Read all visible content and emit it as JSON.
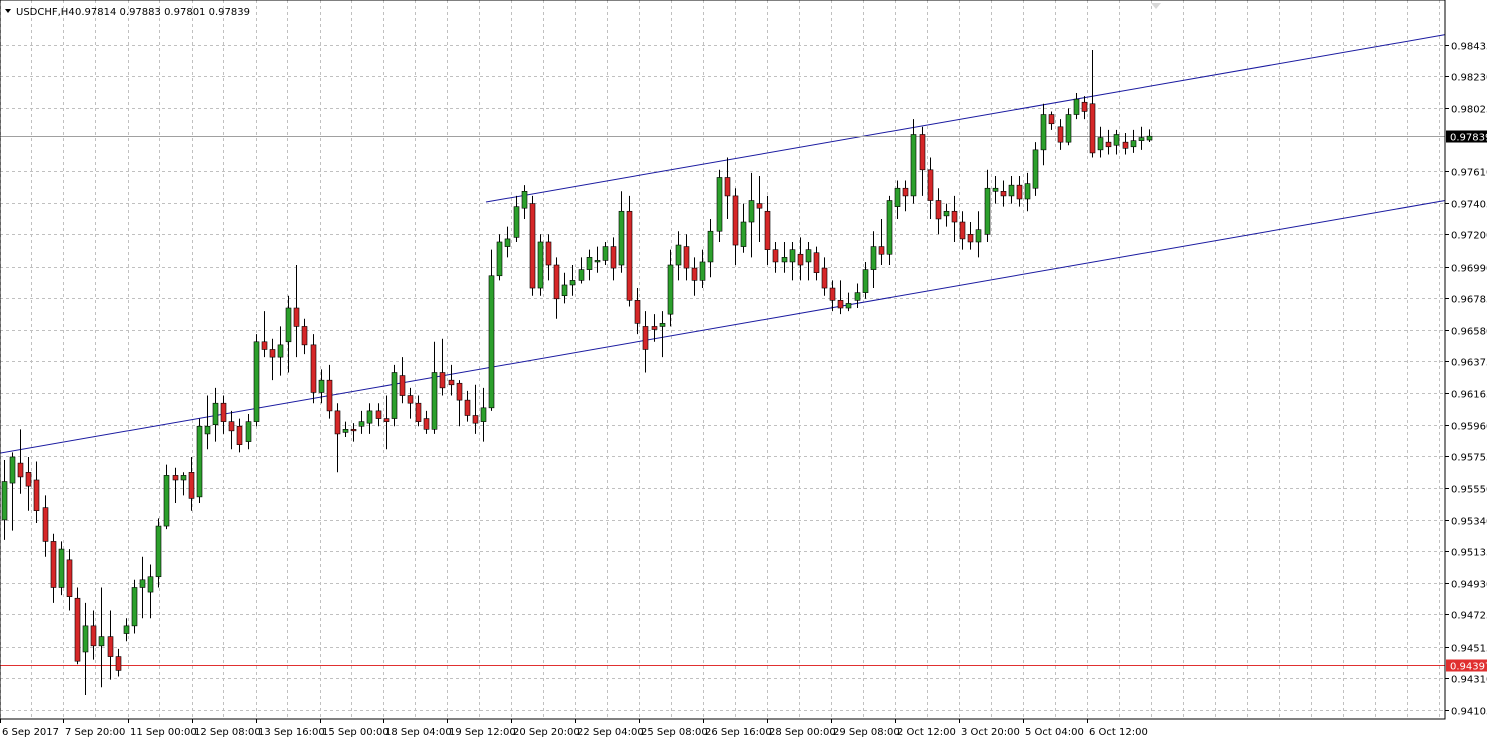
{
  "header": {
    "symbol": "USDCHF,H4",
    "ohlc": "0.97814 0.97883 0.97801 0.97839"
  },
  "colors": {
    "bull": "#2ca02c",
    "bear": "#d62728",
    "wick": "#000000",
    "grid": "#c0c0c0",
    "channel": "#1a1aa0",
    "current_line": "#a0a0a0",
    "support_line": "#e03030"
  },
  "chart_data": {
    "type": "candlestick",
    "ylim": [
      0.9405,
      0.9855
    ],
    "y_ticks": [
      "0.98435",
      "0.98230",
      "0.98025",
      "0.97610",
      "0.97405",
      "0.97200",
      "0.96990",
      "0.96785",
      "0.96580",
      "0.96375",
      "0.96165",
      "0.95960",
      "0.95755",
      "0.95550",
      "0.95340",
      "0.95135",
      "0.94930",
      "0.94725",
      "0.94515",
      "0.94310",
      "0.94105"
    ],
    "x_ticks": [
      "6 Sep 2017",
      "7 Sep 20:00",
      "11 Sep 00:00",
      "12 Sep 08:00",
      "13 Sep 16:00",
      "15 Sep 00:00",
      "18 Sep 04:00",
      "19 Sep 12:00",
      "20 Sep 20:00",
      "22 Sep 04:00",
      "25 Sep 08:00",
      "26 Sep 16:00",
      "28 Sep 00:00",
      "29 Sep 08:00",
      "2 Oct 12:00",
      "3 Oct 20:00",
      "5 Oct 04:00",
      "6 Oct 12:00"
    ],
    "current_price": "0.97839",
    "current_value": 0.97839,
    "support_price": "0.94397",
    "support_value": 0.94397,
    "channel_upper": [
      [
        0,
        0.9741
      ],
      [
        126,
        0.985
      ]
    ],
    "channel_lower": [
      [
        -1,
        0.9577
      ],
      [
        126,
        0.9742
      ]
    ],
    "candles": [
      [
        0.9534,
        0.9559,
        0.9521,
        0.9573
      ],
      [
        0.9558,
        0.9575,
        0.9527,
        0.9578
      ],
      [
        0.9571,
        0.9562,
        0.9551,
        0.9593
      ],
      [
        0.9565,
        0.9556,
        0.954,
        0.9575
      ],
      [
        0.956,
        0.954,
        0.9532,
        0.9572
      ],
      [
        0.9542,
        0.952,
        0.951,
        0.955
      ],
      [
        0.952,
        0.949,
        0.948,
        0.9525
      ],
      [
        0.949,
        0.9515,
        0.9485,
        0.952
      ],
      [
        0.9508,
        0.9484,
        0.9475,
        0.9515
      ],
      [
        0.9483,
        0.9442,
        0.944,
        0.949
      ],
      [
        0.9448,
        0.9465,
        0.942,
        0.948
      ],
      [
        0.9465,
        0.9452,
        0.9443,
        0.9475
      ],
      [
        0.9452,
        0.9458,
        0.9425,
        0.949
      ],
      [
        0.9458,
        0.9445,
        0.943,
        0.9475
      ],
      [
        0.9445,
        0.9436,
        0.9432,
        0.945
      ],
      [
        0.946,
        0.9465,
        0.9455,
        0.947
      ],
      [
        0.9465,
        0.949,
        0.946,
        0.9495
      ],
      [
        0.949,
        0.9495,
        0.947,
        0.951
      ],
      [
        0.9487,
        0.9497,
        0.947,
        0.9505
      ],
      [
        0.9497,
        0.953,
        0.949,
        0.9535
      ],
      [
        0.953,
        0.9563,
        0.9528,
        0.957
      ],
      [
        0.9563,
        0.956,
        0.9545,
        0.9568
      ],
      [
        0.956,
        0.9563,
        0.955,
        0.9565
      ],
      [
        0.9565,
        0.9548,
        0.954,
        0.9575
      ],
      [
        0.9549,
        0.9595,
        0.9545,
        0.96
      ],
      [
        0.959,
        0.9595,
        0.958,
        0.9615
      ],
      [
        0.9596,
        0.961,
        0.9585,
        0.962
      ],
      [
        0.961,
        0.9598,
        0.959,
        0.9615
      ],
      [
        0.9598,
        0.9592,
        0.958,
        0.9605
      ],
      [
        0.9595,
        0.9583,
        0.9578,
        0.96
      ],
      [
        0.9585,
        0.9598,
        0.958,
        0.9603
      ],
      [
        0.9598,
        0.965,
        0.9595,
        0.9655
      ],
      [
        0.965,
        0.9645,
        0.964,
        0.967
      ],
      [
        0.9645,
        0.964,
        0.9625,
        0.9652
      ],
      [
        0.964,
        0.9648,
        0.9628,
        0.966
      ],
      [
        0.965,
        0.9672,
        0.963,
        0.968
      ],
      [
        0.9672,
        0.966,
        0.964,
        0.97
      ],
      [
        0.966,
        0.9648,
        0.9642,
        0.9665
      ],
      [
        0.9648,
        0.9617,
        0.961,
        0.9655
      ],
      [
        0.9617,
        0.9625,
        0.961,
        0.9632
      ],
      [
        0.9625,
        0.9605,
        0.96,
        0.9635
      ],
      [
        0.9605,
        0.959,
        0.9565,
        0.961
      ],
      [
        0.9591,
        0.9593,
        0.9588,
        0.9598
      ],
      [
        0.9593,
        0.9592,
        0.9585,
        0.9597
      ],
      [
        0.9595,
        0.9598,
        0.959,
        0.9605
      ],
      [
        0.9597,
        0.9605,
        0.959,
        0.961
      ],
      [
        0.9605,
        0.96,
        0.9595,
        0.961
      ],
      [
        0.96,
        0.9598,
        0.958,
        0.9615
      ],
      [
        0.96,
        0.963,
        0.9595,
        0.9635
      ],
      [
        0.9628,
        0.9615,
        0.961,
        0.964
      ],
      [
        0.9615,
        0.961,
        0.96,
        0.962
      ],
      [
        0.961,
        0.9598,
        0.9595,
        0.9615
      ],
      [
        0.96,
        0.9593,
        0.959,
        0.9605
      ],
      [
        0.9593,
        0.963,
        0.959,
        0.965
      ],
      [
        0.963,
        0.962,
        0.9615,
        0.9652
      ],
      [
        0.9625,
        0.9622,
        0.9615,
        0.9635
      ],
      [
        0.9623,
        0.9612,
        0.9595,
        0.9625
      ],
      [
        0.9612,
        0.9602,
        0.9598,
        0.9618
      ],
      [
        0.9602,
        0.9597,
        0.959,
        0.9622
      ],
      [
        0.9598,
        0.9607,
        0.9585,
        0.962
      ],
      [
        0.9607,
        0.9693,
        0.9605,
        0.971
      ],
      [
        0.9693,
        0.9715,
        0.969,
        0.972
      ],
      [
        0.9712,
        0.9717,
        0.9705,
        0.9725
      ],
      [
        0.9718,
        0.9738,
        0.9715,
        0.9745
      ],
      [
        0.9737,
        0.9748,
        0.973,
        0.9752
      ],
      [
        0.974,
        0.9685,
        0.968,
        0.9745
      ],
      [
        0.9685,
        0.9715,
        0.968,
        0.972
      ],
      [
        0.9715,
        0.97,
        0.969,
        0.972
      ],
      [
        0.97,
        0.9678,
        0.9665,
        0.9705
      ],
      [
        0.968,
        0.9687,
        0.9675,
        0.9695
      ],
      [
        0.9687,
        0.969,
        0.968,
        0.97
      ],
      [
        0.969,
        0.9697,
        0.9688,
        0.9705
      ],
      [
        0.9697,
        0.9705,
        0.969,
        0.971
      ],
      [
        0.9702,
        0.9703,
        0.9695,
        0.9712
      ],
      [
        0.9703,
        0.9712,
        0.97,
        0.9715
      ],
      [
        0.9712,
        0.9698,
        0.969,
        0.9718
      ],
      [
        0.97,
        0.9735,
        0.9695,
        0.9748
      ],
      [
        0.9735,
        0.9677,
        0.9673,
        0.9745
      ],
      [
        0.9677,
        0.9662,
        0.9655,
        0.9685
      ],
      [
        0.966,
        0.9645,
        0.963,
        0.967
      ],
      [
        0.966,
        0.9658,
        0.965,
        0.9668
      ],
      [
        0.966,
        0.9662,
        0.964,
        0.967
      ],
      [
        0.9668,
        0.97,
        0.966,
        0.971
      ],
      [
        0.97,
        0.9713,
        0.969,
        0.9722
      ],
      [
        0.9712,
        0.9698,
        0.969,
        0.972
      ],
      [
        0.9698,
        0.969,
        0.968,
        0.9705
      ],
      [
        0.969,
        0.9702,
        0.9685,
        0.971
      ],
      [
        0.9702,
        0.9722,
        0.9692,
        0.973
      ],
      [
        0.9722,
        0.9757,
        0.9715,
        0.9762
      ],
      [
        0.9757,
        0.9745,
        0.973,
        0.977
      ],
      [
        0.9745,
        0.9713,
        0.97,
        0.975
      ],
      [
        0.9712,
        0.9728,
        0.9708,
        0.974
      ],
      [
        0.9728,
        0.9742,
        0.9705,
        0.976
      ],
      [
        0.974,
        0.9737,
        0.9715,
        0.9758
      ],
      [
        0.9735,
        0.971,
        0.97,
        0.9745
      ],
      [
        0.971,
        0.9702,
        0.9695,
        0.9715
      ],
      [
        0.9702,
        0.9705,
        0.9695,
        0.9715
      ],
      [
        0.9702,
        0.971,
        0.969,
        0.9715
      ],
      [
        0.9707,
        0.97,
        0.969,
        0.9718
      ],
      [
        0.9702,
        0.971,
        0.969,
        0.9715
      ],
      [
        0.9708,
        0.9695,
        0.969,
        0.9712
      ],
      [
        0.9698,
        0.9685,
        0.968,
        0.9705
      ],
      [
        0.9685,
        0.9677,
        0.967,
        0.969
      ],
      [
        0.9677,
        0.9672,
        0.9668,
        0.969
      ],
      [
        0.9672,
        0.9675,
        0.967,
        0.9682
      ],
      [
        0.9677,
        0.9682,
        0.9672,
        0.9688
      ],
      [
        0.9682,
        0.9697,
        0.9678,
        0.9702
      ],
      [
        0.9697,
        0.9712,
        0.9685,
        0.9722
      ],
      [
        0.9712,
        0.9707,
        0.97,
        0.973
      ],
      [
        0.9707,
        0.9742,
        0.97,
        0.9745
      ],
      [
        0.9738,
        0.975,
        0.973,
        0.9755
      ],
      [
        0.975,
        0.9745,
        0.9735,
        0.9755
      ],
      [
        0.9745,
        0.9785,
        0.974,
        0.9795
      ],
      [
        0.9785,
        0.9762,
        0.9745,
        0.979
      ],
      [
        0.9762,
        0.9742,
        0.973,
        0.977
      ],
      [
        0.9742,
        0.973,
        0.972,
        0.975
      ],
      [
        0.9732,
        0.9735,
        0.9725,
        0.974
      ],
      [
        0.9735,
        0.9728,
        0.9715,
        0.9745
      ],
      [
        0.9728,
        0.9717,
        0.971,
        0.9735
      ],
      [
        0.972,
        0.9715,
        0.971,
        0.9728
      ],
      [
        0.9715,
        0.9723,
        0.9705,
        0.9735
      ],
      [
        0.972,
        0.975,
        0.9715,
        0.9762
      ],
      [
        0.9748,
        0.975,
        0.974,
        0.9758
      ],
      [
        0.9748,
        0.9745,
        0.9738,
        0.9755
      ],
      [
        0.9745,
        0.9752,
        0.974,
        0.9758
      ],
      [
        0.9752,
        0.9743,
        0.9738,
        0.9758
      ],
      [
        0.9743,
        0.9753,
        0.9735,
        0.976
      ],
      [
        0.975,
        0.9775,
        0.9745,
        0.978
      ],
      [
        0.9775,
        0.9798,
        0.9765,
        0.9805
      ],
      [
        0.9798,
        0.9792,
        0.9788,
        0.98
      ],
      [
        0.979,
        0.978,
        0.9775,
        0.9795
      ],
      [
        0.978,
        0.9798,
        0.9778,
        0.9802
      ],
      [
        0.9798,
        0.9808,
        0.9795,
        0.9812
      ],
      [
        0.9806,
        0.98,
        0.9795,
        0.981
      ],
      [
        0.9805,
        0.9773,
        0.977,
        0.984
      ],
      [
        0.9775,
        0.9783,
        0.977,
        0.979
      ],
      [
        0.978,
        0.9777,
        0.9772,
        0.9788
      ],
      [
        0.9778,
        0.9785,
        0.9772,
        0.9788
      ],
      [
        0.978,
        0.9776,
        0.9772,
        0.9786
      ],
      [
        0.9777,
        0.9781,
        0.9773,
        0.9788
      ],
      [
        0.9781,
        0.9783,
        0.9775,
        0.979
      ],
      [
        0.97814,
        0.97839,
        0.97801,
        0.97883
      ]
    ]
  }
}
